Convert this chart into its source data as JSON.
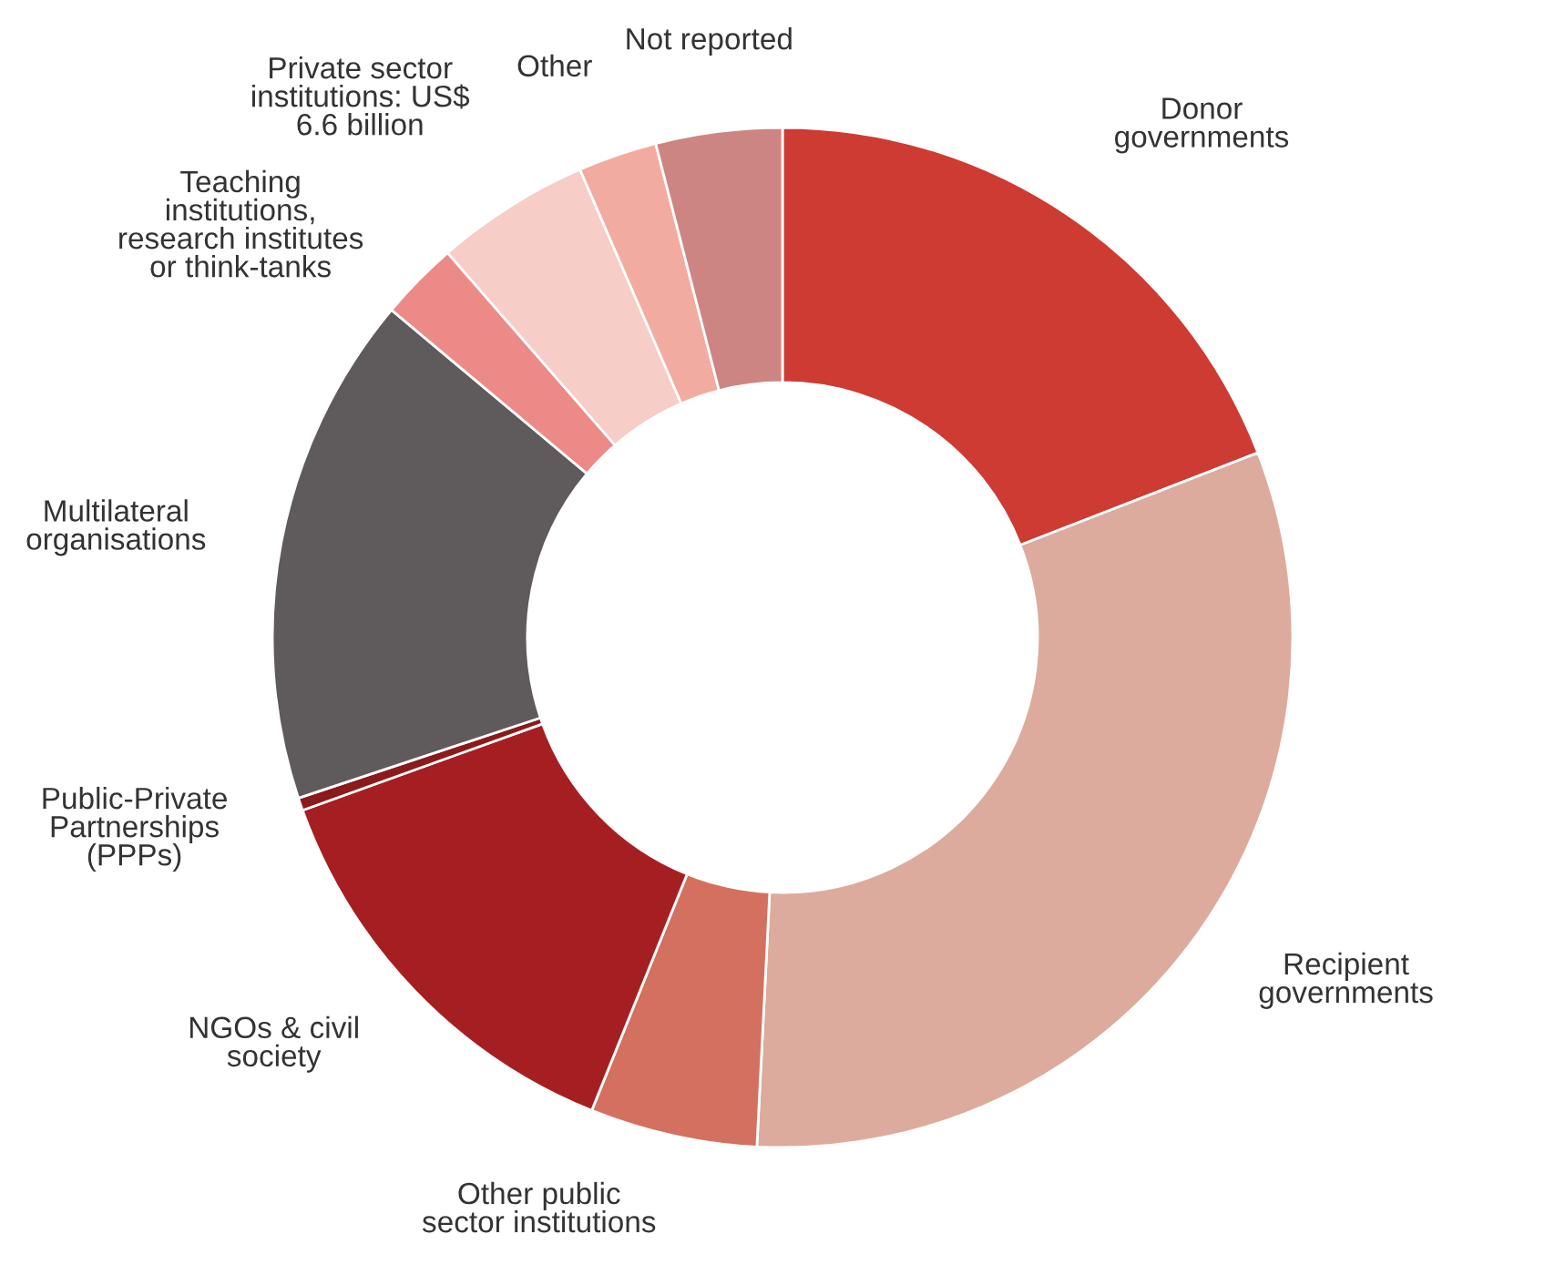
{
  "chart_data": {
    "type": "donut",
    "categories": [
      "Donor\ngovernments",
      "Recipient\ngovernments",
      "Other public\nsector institutions",
      "NGOs & civil\nsociety",
      "Public-Private\nPartnerships\n(PPPs)",
      "Multilateral\norganisations",
      "Teaching\ninstitutions,\nresearch institutes\nor think-tanks",
      "Private sector\ninstitutions: US$\n6.6 billion",
      "Other",
      "Not reported"
    ],
    "values": [
      19.1,
      31.7,
      5.3,
      13.4,
      0.4,
      16.2,
      2.5,
      4.9,
      2.5,
      4.0
    ],
    "colors": [
      "#cd3b33",
      "#dcab9d",
      "#d4705f",
      "#a51f22",
      "#8b1a1a",
      "#5f5a5c",
      "#ec8a87",
      "#f7cdc7",
      "#f2aba0",
      "#cd8584"
    ],
    "legend": false
  }
}
